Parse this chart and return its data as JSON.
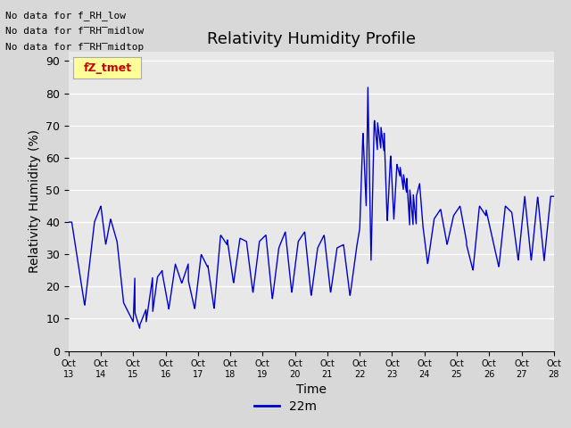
{
  "title": "Relativity Humidity Profile",
  "xlabel": "Time",
  "ylabel": "Relativity Humidity (%)",
  "line_color": "#0000cc",
  "line_label": "22m",
  "legend_text": "fZ_tmet",
  "legend_text_color": "#cc0000",
  "legend_bg": "#ffff99",
  "legend_border": "#aaaaaa",
  "no_data_texts": [
    "No data for f_RH_low",
    "No data for f̅RH̅midlow",
    "No data for f̅RH̅midtop"
  ],
  "ylim": [
    0,
    93
  ],
  "yticks": [
    0,
    10,
    20,
    30,
    40,
    50,
    60,
    70,
    80,
    90
  ],
  "xtick_labels": [
    "Oct 13",
    "Oct 14",
    "Oct 15",
    "Oct 16",
    "Oct 17",
    "Oct 18",
    "Oct 19",
    "Oct 20",
    "Oct 21",
    "Oct 22",
    "Oct 23",
    "Oct 24",
    "Oct 25",
    "Oct 26",
    "Oct 27",
    "Oct 28"
  ],
  "fig_facecolor": "#d8d8d8",
  "ax_facecolor": "#e8e8e8",
  "grid_color": "#ffffff",
  "title_fontsize": 13,
  "axis_label_fontsize": 10,
  "tick_fontsize": 9
}
